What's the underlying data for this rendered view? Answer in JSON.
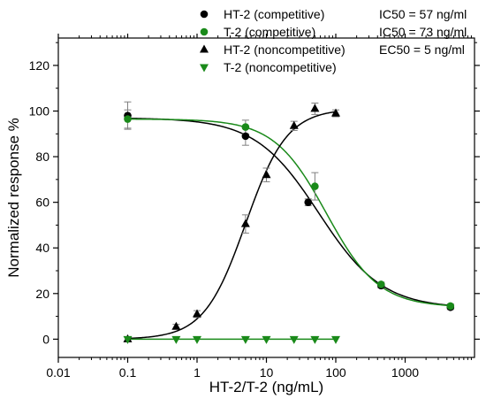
{
  "chart_data": {
    "type": "scatter",
    "xlabel": "HT-2/T-2 (ng/mL)",
    "ylabel": "Normalized response %",
    "x_scale": "log",
    "xlim": [
      0.01,
      10000
    ],
    "ylim": [
      -8,
      132
    ],
    "x_ticks": [
      0.01,
      0.1,
      1,
      10,
      100,
      1000
    ],
    "x_tick_labels": [
      "0.01",
      "0.1",
      "1",
      "10",
      "100",
      "1000"
    ],
    "y_ticks": [
      0,
      20,
      40,
      60,
      80,
      100,
      120
    ],
    "y_tick_labels": [
      "0",
      "20",
      "40",
      "60",
      "80",
      "100",
      "120"
    ],
    "grid": false,
    "legend_position": "top-right",
    "series": [
      {
        "name": "HT-2 (competitive)",
        "annotation": "IC50 = 57 ng/ml",
        "color": "#000000",
        "marker": "circle",
        "points": [
          {
            "x": 0.1,
            "y": 98,
            "err": 6
          },
          {
            "x": 5,
            "y": 89,
            "err": 4
          },
          {
            "x": 40,
            "y": 60,
            "err": 1.5
          },
          {
            "x": 450,
            "y": 23.5,
            "err": 1
          },
          {
            "x": 4500,
            "y": 14,
            "err": 1
          }
        ],
        "fit": {
          "top": 97,
          "bottom": 13.5,
          "ic50": 57,
          "hill": 0.95
        }
      },
      {
        "name": "T-2 (competitive)",
        "annotation": "IC50 = 73 ng/ml",
        "color": "#1a8a1a",
        "marker": "circle",
        "points": [
          {
            "x": 0.1,
            "y": 96.5,
            "err": 4
          },
          {
            "x": 5,
            "y": 93,
            "err": 3
          },
          {
            "x": 50,
            "y": 67,
            "err": 6
          },
          {
            "x": 450,
            "y": 24,
            "err": 1
          },
          {
            "x": 4500,
            "y": 14.5,
            "err": 1
          }
        ],
        "fit": {
          "top": 96.5,
          "bottom": 14,
          "ic50": 73,
          "hill": 1.15
        }
      },
      {
        "name": "HT-2 (noncompetitive)",
        "annotation": "EC50 = 5 ng/ml",
        "color": "#000000",
        "marker": "triangle-up",
        "points": [
          {
            "x": 0.1,
            "y": 0,
            "err": 0
          },
          {
            "x": 0.5,
            "y": 5.5,
            "err": 1
          },
          {
            "x": 1,
            "y": 11,
            "err": 1.5
          },
          {
            "x": 5,
            "y": 50.5,
            "err": 4
          },
          {
            "x": 10,
            "y": 72,
            "err": 3
          },
          {
            "x": 25,
            "y": 93.5,
            "err": 2
          },
          {
            "x": 50,
            "y": 101,
            "err": 2.5
          },
          {
            "x": 100,
            "y": 99,
            "err": 1.5
          }
        ],
        "fit": {
          "bottom": 0,
          "top": 101,
          "ec50": 5,
          "hill": 1.45,
          "x_max": 100
        }
      },
      {
        "name": "T-2 (noncompetitive)",
        "annotation": "",
        "color": "#1a8a1a",
        "marker": "triangle-down",
        "points": [
          {
            "x": 0.1,
            "y": 0,
            "err": 0
          },
          {
            "x": 0.5,
            "y": 0,
            "err": 0
          },
          {
            "x": 1,
            "y": 0,
            "err": 0
          },
          {
            "x": 5,
            "y": 0,
            "err": 0
          },
          {
            "x": 10,
            "y": 0,
            "err": 0
          },
          {
            "x": 25,
            "y": 0,
            "err": 0
          },
          {
            "x": 50,
            "y": 0,
            "err": 0
          },
          {
            "x": 100,
            "y": 0,
            "err": 0
          }
        ],
        "fit": {
          "flat": 0,
          "x_max": 100
        }
      }
    ]
  }
}
